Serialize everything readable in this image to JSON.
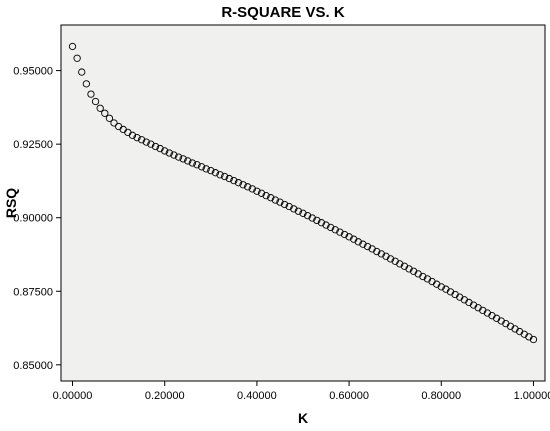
{
  "chart_data": {
    "type": "scatter",
    "title": "R-SQUARE VS. K",
    "xlabel": "K",
    "ylabel": "RSQ",
    "xlim": [
      -0.025,
      1.025
    ],
    "ylim": [
      0.8445,
      0.9655
    ],
    "xticks": [
      0.0,
      0.2,
      0.4,
      0.6,
      0.8,
      1.0
    ],
    "xtick_labels": [
      "0.00000",
      "0.20000",
      "0.40000",
      "0.60000",
      "0.80000",
      "1.00000"
    ],
    "yticks": [
      0.85,
      0.875,
      0.9,
      0.925,
      0.95
    ],
    "ytick_labels": [
      "0.85000",
      "0.87500",
      "0.90000",
      "0.92500",
      "0.95000"
    ],
    "grid": false,
    "background_color": "#f0f0ee",
    "marker": "open-circle",
    "x": [
      0.0,
      0.01,
      0.02,
      0.03,
      0.04,
      0.05,
      0.06,
      0.07,
      0.08,
      0.09,
      0.1,
      0.11,
      0.12,
      0.13,
      0.14,
      0.15,
      0.16,
      0.17,
      0.18,
      0.19,
      0.2,
      0.21,
      0.22,
      0.23,
      0.24,
      0.25,
      0.26,
      0.27,
      0.28,
      0.29,
      0.3,
      0.31,
      0.32,
      0.33,
      0.34,
      0.35,
      0.36,
      0.37,
      0.38,
      0.39,
      0.4,
      0.41,
      0.42,
      0.43,
      0.44,
      0.45,
      0.46,
      0.47,
      0.48,
      0.49,
      0.5,
      0.51,
      0.52,
      0.53,
      0.54,
      0.55,
      0.56,
      0.57,
      0.58,
      0.59,
      0.6,
      0.61,
      0.62,
      0.63,
      0.64,
      0.65,
      0.66,
      0.67,
      0.68,
      0.69,
      0.7,
      0.71,
      0.72,
      0.73,
      0.74,
      0.75,
      0.76,
      0.77,
      0.78,
      0.79,
      0.8,
      0.81,
      0.82,
      0.83,
      0.84,
      0.85,
      0.86,
      0.87,
      0.88,
      0.89,
      0.9,
      0.91,
      0.92,
      0.93,
      0.94,
      0.95,
      0.96,
      0.97,
      0.98,
      0.99,
      1.0
    ],
    "y": [
      0.9582,
      0.9542,
      0.9495,
      0.9455,
      0.942,
      0.9395,
      0.9372,
      0.9355,
      0.9338,
      0.9322,
      0.931,
      0.93,
      0.929,
      0.928,
      0.9272,
      0.9265,
      0.9257,
      0.925,
      0.9242,
      0.9235,
      0.9227,
      0.922,
      0.9213,
      0.9206,
      0.92,
      0.9193,
      0.9186,
      0.918,
      0.9173,
      0.9166,
      0.916,
      0.9153,
      0.9146,
      0.914,
      0.9133,
      0.9126,
      0.9119,
      0.9112,
      0.9105,
      0.9098,
      0.909,
      0.9083,
      0.9075,
      0.9068,
      0.906,
      0.9053,
      0.9045,
      0.9038,
      0.903,
      0.9022,
      0.9015,
      0.9007,
      0.8999,
      0.8991,
      0.8983,
      0.8975,
      0.8967,
      0.8959,
      0.8951,
      0.8943,
      0.8935,
      0.8927,
      0.8918,
      0.891,
      0.8902,
      0.8894,
      0.8885,
      0.8877,
      0.8869,
      0.886,
      0.8852,
      0.8843,
      0.8835,
      0.8826,
      0.8818,
      0.8809,
      0.88,
      0.8792,
      0.8783,
      0.8774,
      0.8765,
      0.8757,
      0.8748,
      0.8739,
      0.873,
      0.8721,
      0.8712,
      0.8703,
      0.8694,
      0.8685,
      0.8676,
      0.8667,
      0.8658,
      0.8649,
      0.864,
      0.8631,
      0.8622,
      0.8613,
      0.8604,
      0.8595,
      0.8586
    ]
  }
}
